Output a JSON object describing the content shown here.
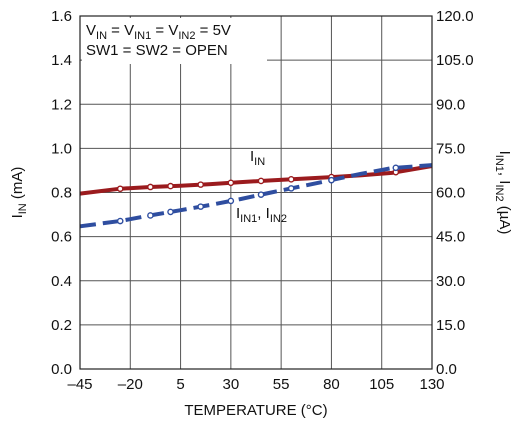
{
  "chart_data": {
    "type": "line",
    "xlabel": "TEMPERATURE (°C)",
    "ylabel_left": {
      "main": "I",
      "sub": "IN",
      "unit": " (mA)"
    },
    "ylabel_right": {
      "parts": [
        {
          "t": "I",
          "sub": false
        },
        {
          "t": "IN1",
          "sub": true
        },
        {
          "t": ", I",
          "sub": false
        },
        {
          "t": "IN2",
          "sub": true
        },
        {
          "t": " (µA)",
          "sub": false
        }
      ]
    },
    "xlim": [
      -45,
      130
    ],
    "ylim_left": [
      0,
      1.6
    ],
    "ylim_right": [
      0,
      120
    ],
    "x_ticks": [
      "–45",
      "–20",
      "5",
      "30",
      "55",
      "80",
      "105",
      "130"
    ],
    "y_ticks_left": [
      "0.0",
      "0.2",
      "0.4",
      "0.6",
      "0.8",
      "1.0",
      "1.2",
      "1.4",
      "1.6"
    ],
    "y_ticks_right": [
      "0.0",
      "15.0",
      "30.0",
      "45.0",
      "60.0",
      "75.0",
      "90.0",
      "105.0",
      "120.0"
    ],
    "grid": true,
    "annotation_lines": [
      [
        {
          "t": "V",
          "sub": false
        },
        {
          "t": "IN",
          "sub": true
        },
        {
          "t": " = V",
          "sub": false
        },
        {
          "t": "IN1",
          "sub": true
        },
        {
          "t": " = V",
          "sub": false
        },
        {
          "t": "IN2",
          "sub": true
        },
        {
          "t": " = 5V",
          "sub": false
        }
      ],
      [
        {
          "t": "SW1 = SW2 = OPEN",
          "sub": false
        }
      ]
    ],
    "series": [
      {
        "name_parts": [
          {
            "t": "I",
            "sub": false
          },
          {
            "t": "IN",
            "sub": true
          }
        ],
        "axis": "left",
        "color": "#9b1b1e",
        "style": "solid",
        "x": [
          -45,
          -25,
          -10,
          5,
          20,
          35,
          50,
          65,
          80,
          95,
          110,
          130
        ],
        "y": [
          0.795,
          0.817,
          0.825,
          0.831,
          0.838,
          0.847,
          0.855,
          0.862,
          0.87,
          0.878,
          0.889,
          0.92
        ],
        "markers_x": [
          -25,
          -10,
          0,
          15,
          30,
          45,
          60,
          80,
          112
        ]
      },
      {
        "name_parts": [
          {
            "t": "I",
            "sub": false
          },
          {
            "t": "IN1",
            "sub": true
          },
          {
            "t": ", I",
            "sub": false
          },
          {
            "t": "IN2",
            "sub": true
          }
        ],
        "axis": "right",
        "color": "#2f4ea0",
        "style": "dashed",
        "x": [
          -45,
          -25,
          -10,
          5,
          20,
          35,
          50,
          65,
          80,
          95,
          110,
          130
        ],
        "y": [
          48.5,
          50.3,
          52.2,
          54.0,
          55.8,
          57.8,
          60.0,
          62.1,
          64.2,
          66.4,
          68.3,
          69.3
        ],
        "markers_x": [
          -25,
          -10,
          0,
          15,
          30,
          45,
          60,
          80,
          112
        ]
      }
    ]
  }
}
